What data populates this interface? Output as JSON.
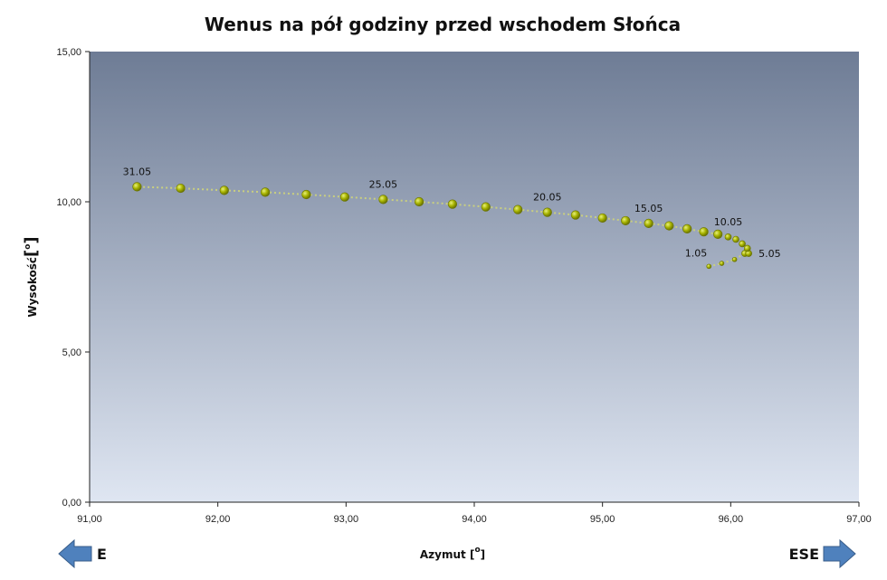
{
  "chart_data": {
    "type": "scatter",
    "title": "Wenus na pół godziny przed wschodem Słońca",
    "xlabel": "Azymut [",
    "xlabel_unit": "o",
    "xlabel_close": "]",
    "ylabel": "Wysokość",
    "ylabel_unit_open": "[",
    "ylabel_unit": "o",
    "ylabel_unit_close": "]",
    "xlim": [
      91.0,
      97.0
    ],
    "ylim": [
      0.0,
      15.0
    ],
    "x_ticks": [
      "91,00",
      "92,00",
      "93,00",
      "94,00",
      "95,00",
      "96,00",
      "97,00"
    ],
    "y_ticks": [
      "0,00",
      "5,00",
      "10,00",
      "15,00"
    ],
    "grid": false,
    "points": [
      {
        "x": 95.83,
        "y": 7.85
      },
      {
        "x": 95.93,
        "y": 7.95
      },
      {
        "x": 96.03,
        "y": 8.08
      },
      {
        "x": 96.11,
        "y": 8.28
      },
      {
        "x": 96.14,
        "y": 8.28
      },
      {
        "x": 96.13,
        "y": 8.45
      },
      {
        "x": 96.09,
        "y": 8.6
      },
      {
        "x": 96.04,
        "y": 8.75
      },
      {
        "x": 95.98,
        "y": 8.83
      },
      {
        "x": 95.9,
        "y": 8.92
      },
      {
        "x": 95.79,
        "y": 9.0
      },
      {
        "x": 95.66,
        "y": 9.1
      },
      {
        "x": 95.52,
        "y": 9.2
      },
      {
        "x": 95.36,
        "y": 9.28
      },
      {
        "x": 95.18,
        "y": 9.37
      },
      {
        "x": 95.0,
        "y": 9.46
      },
      {
        "x": 94.79,
        "y": 9.56
      },
      {
        "x": 94.57,
        "y": 9.65
      },
      {
        "x": 94.34,
        "y": 9.74
      },
      {
        "x": 94.09,
        "y": 9.83
      },
      {
        "x": 93.83,
        "y": 9.92
      },
      {
        "x": 93.57,
        "y": 10.0
      },
      {
        "x": 93.29,
        "y": 10.08
      },
      {
        "x": 92.99,
        "y": 10.16
      },
      {
        "x": 92.69,
        "y": 10.24
      },
      {
        "x": 92.37,
        "y": 10.32
      },
      {
        "x": 92.05,
        "y": 10.38
      },
      {
        "x": 91.71,
        "y": 10.45
      },
      {
        "x": 91.37,
        "y": 10.5
      }
    ],
    "point_labels": [
      {
        "text": "1.05",
        "x": 95.83,
        "y": 7.85,
        "anchor": "left-above"
      },
      {
        "text": "5.05",
        "x": 96.14,
        "y": 8.28,
        "anchor": "right"
      },
      {
        "text": "10.05",
        "x": 95.98,
        "y": 8.83,
        "anchor": "above"
      },
      {
        "text": "15.05",
        "x": 95.36,
        "y": 9.28,
        "anchor": "above"
      },
      {
        "text": "20.05",
        "x": 94.57,
        "y": 9.65,
        "anchor": "above"
      },
      {
        "text": "25.05",
        "x": 93.29,
        "y": 10.08,
        "anchor": "above"
      },
      {
        "text": "31.05",
        "x": 91.37,
        "y": 10.5,
        "anchor": "above"
      }
    ],
    "directions": {
      "left": "E",
      "right": "ESE"
    },
    "colors": {
      "plot_top": "#6e7c95",
      "plot_bottom": "#dfe6f2",
      "point_fill": "#a8b400",
      "point_stroke": "#6b7400",
      "line": "#c9cf80",
      "arrow_fill": "#4f81bd",
      "arrow_stroke": "#385d8a"
    }
  }
}
